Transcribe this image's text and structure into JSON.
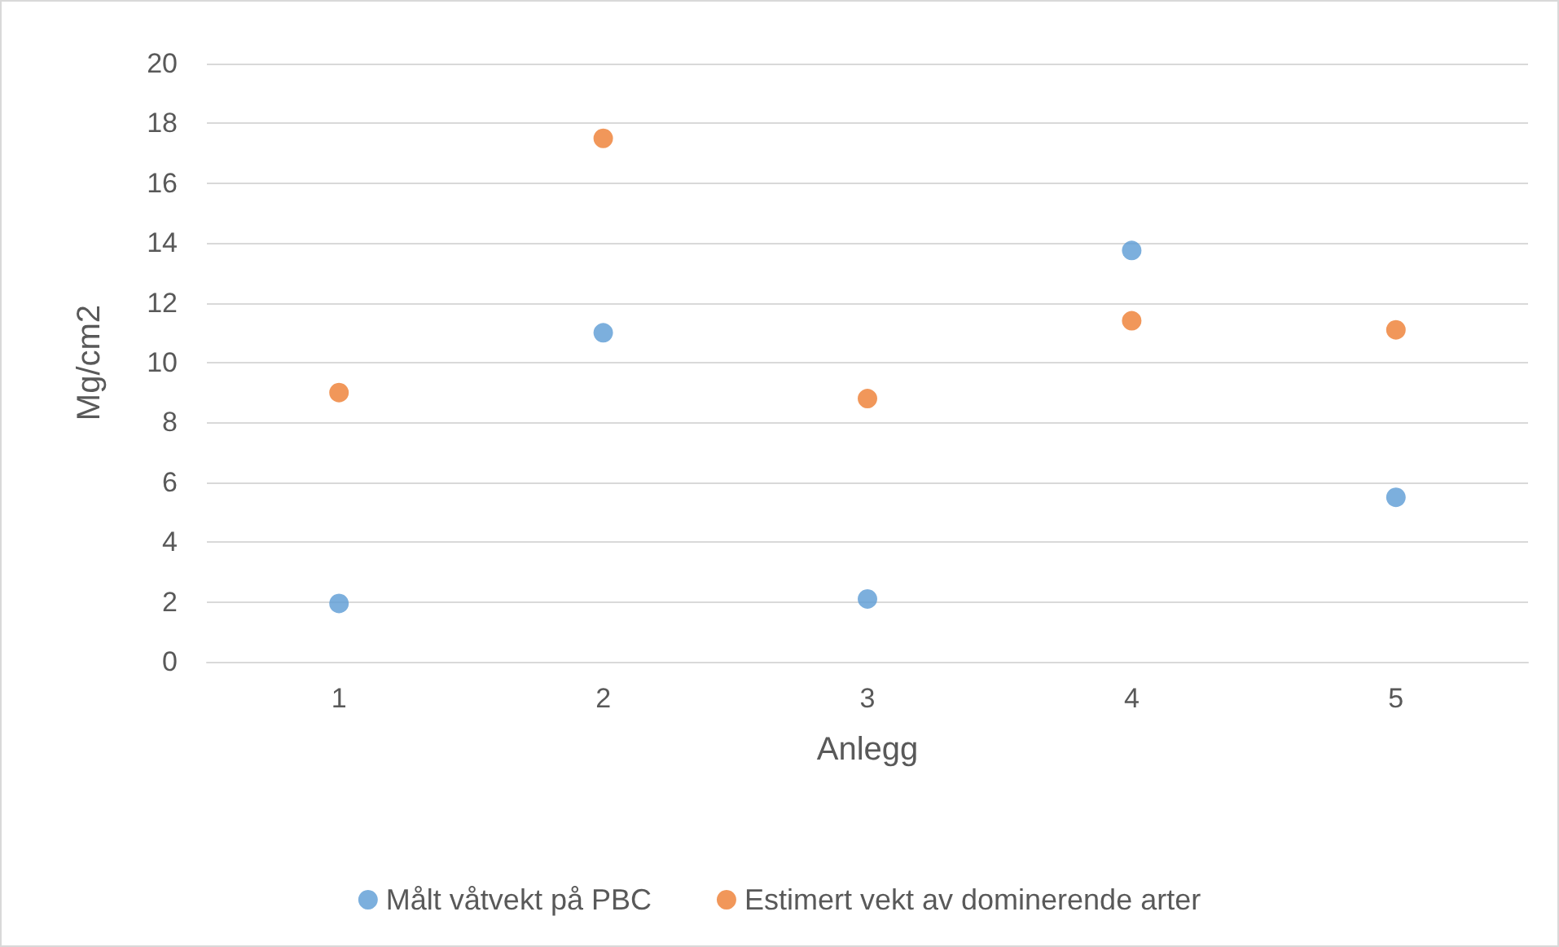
{
  "chart_data": {
    "type": "scatter",
    "xlabel": "Anlegg",
    "ylabel": "Mg/cm2",
    "categories": [
      "1",
      "2",
      "3",
      "4",
      "5"
    ],
    "series": [
      {
        "name": "Målt våtvekt på PBC",
        "color": "#5b9bd5",
        "values": [
          1.95,
          11.0,
          2.1,
          13.75,
          5.5
        ]
      },
      {
        "name": "Estimert vekt av dominerende arter",
        "color": "#ed7d31",
        "values": [
          9.0,
          17.5,
          8.8,
          11.4,
          11.1
        ]
      }
    ],
    "ylim": [
      0,
      20
    ],
    "yticks": [
      0,
      2,
      4,
      6,
      8,
      10,
      12,
      14,
      16,
      18,
      20
    ],
    "grid": "y",
    "legend": "bottom",
    "marker": "circle"
  }
}
